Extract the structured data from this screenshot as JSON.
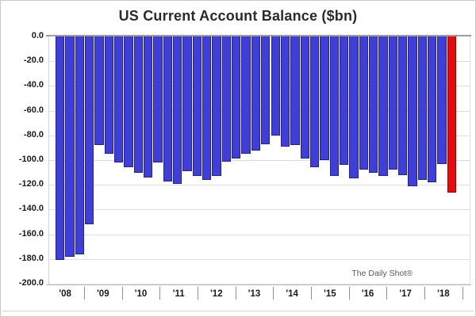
{
  "title": "US Current Account Balance ($bn)",
  "watermark": "The Daily Shot®",
  "chart_data": {
    "type": "bar",
    "title": "US Current Account Balance ($bn)",
    "ylabel": "",
    "xlabel": "",
    "unit": "$bn",
    "ylim": [
      -200,
      0
    ],
    "grid": true,
    "y_tick_labels": [
      "0.0",
      "-20.0",
      "-40.0",
      "-60.0",
      "-80.0",
      "-100.0",
      "-120.0",
      "-140.0",
      "-160.0",
      "-180.0",
      "-200.0"
    ],
    "y_tick_values": [
      0,
      -20,
      -40,
      -60,
      -80,
      -100,
      -120,
      -140,
      -160,
      -180,
      -200
    ],
    "x_year_labels": [
      "'08",
      "'09",
      "'10",
      "'11",
      "'12",
      "'13",
      "'14",
      "'15",
      "'16",
      "'17",
      "'18"
    ],
    "bars_in_year_regions": [
      3,
      4,
      4,
      4,
      4,
      4,
      4,
      4,
      4,
      4,
      2
    ],
    "frequency": "quarterly",
    "values": [
      -181,
      -178,
      -176,
      -152,
      -88,
      -95,
      -102,
      -106,
      -110,
      -114,
      -102,
      -117,
      -119,
      -109,
      -113,
      -116,
      -113,
      -101,
      -99,
      -95,
      -92,
      -87,
      -80,
      -89,
      -88,
      -99,
      -106,
      -100,
      -113,
      -104,
      -115,
      -108,
      -110,
      -113,
      -108,
      -112,
      -121,
      -116,
      -118,
      -103,
      -126
    ],
    "highlight_last_bar": true,
    "colors": {
      "bar_fill": "#403ed8",
      "bar_border": "#232199",
      "highlight_fill": "#e90a0a",
      "highlight_border": "#8f0606",
      "gridline": "#dedede",
      "zero_line": "#9e9e9e",
      "axis_text": "#1a1a1a",
      "watermark_text": "#595959"
    }
  }
}
